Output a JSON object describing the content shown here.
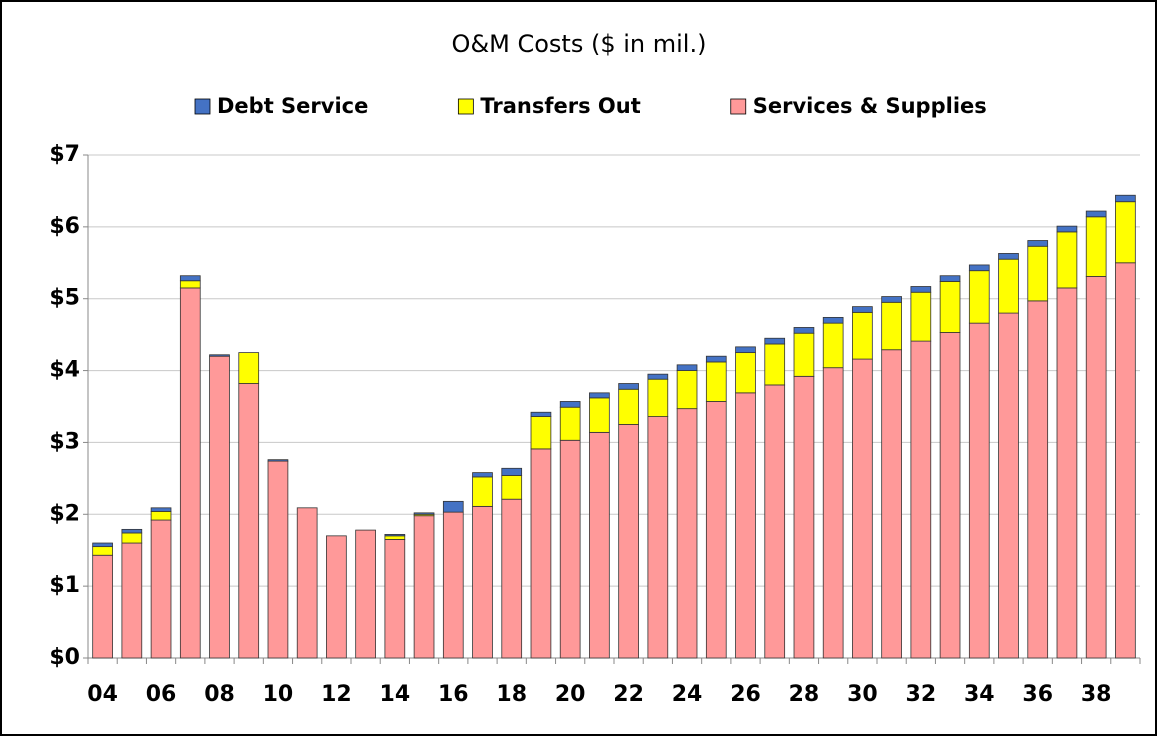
{
  "chart_data": {
    "type": "stacked_bar",
    "title": "O&M Costs ($ in mil.)",
    "categories": [
      "04",
      null,
      "06",
      null,
      "08",
      null,
      "10",
      null,
      "12",
      null,
      "14",
      null,
      "16",
      null,
      "18",
      null,
      "20",
      null,
      "22",
      null,
      "24",
      null,
      "26",
      null,
      "28",
      null,
      "30",
      null,
      "32",
      null,
      "34",
      null,
      "36",
      null,
      "38",
      null
    ],
    "series": [
      {
        "name": "Debt Service",
        "color": "#4472c4",
        "values": [
          0.05,
          0.05,
          0.05,
          0.07,
          0.02,
          0,
          0.02,
          0,
          0,
          0,
          0.02,
          0.02,
          0.15,
          0.06,
          0.1,
          0.06,
          0.08,
          0.07,
          0.08,
          0.07,
          0.08,
          0.08,
          0.08,
          0.08,
          0.08,
          0.08,
          0.08,
          0.08,
          0.08,
          0.08,
          0.08,
          0.08,
          0.08,
          0.08,
          0.08,
          0.09
        ]
      },
      {
        "name": "Transfers Out",
        "color": "#ffff00",
        "values": [
          0.12,
          0.14,
          0.12,
          0.1,
          0,
          0.43,
          0,
          0,
          0,
          0,
          0.05,
          0.02,
          0,
          0.41,
          0.33,
          0.45,
          0.46,
          0.48,
          0.49,
          0.52,
          0.53,
          0.55,
          0.56,
          0.57,
          0.6,
          0.62,
          0.65,
          0.66,
          0.68,
          0.71,
          0.73,
          0.75,
          0.76,
          0.78,
          0.83,
          0.85
        ]
      },
      {
        "name": "Services & Supplies",
        "color": "#ff9999",
        "values": [
          1.43,
          1.6,
          1.92,
          5.15,
          4.2,
          3.82,
          2.74,
          2.09,
          1.7,
          1.78,
          1.65,
          1.98,
          2.03,
          2.11,
          2.21,
          2.91,
          3.03,
          3.14,
          3.25,
          3.36,
          3.47,
          3.57,
          3.69,
          3.8,
          3.92,
          4.04,
          4.16,
          4.29,
          4.41,
          4.53,
          4.66,
          4.8,
          4.97,
          5.15,
          5.31,
          5.5
        ]
      }
    ],
    "ylim": [
      0,
      7
    ],
    "yticks": [
      {
        "value": 0,
        "label": "$0"
      },
      {
        "value": 1,
        "label": "$1"
      },
      {
        "value": 2,
        "label": "$2"
      },
      {
        "value": 3,
        "label": "$3"
      },
      {
        "value": 4,
        "label": "$4"
      },
      {
        "value": 5,
        "label": "$5"
      },
      {
        "value": 6,
        "label": "$6"
      },
      {
        "value": 7,
        "label": "$7"
      }
    ],
    "grid": true,
    "legend": "top"
  }
}
